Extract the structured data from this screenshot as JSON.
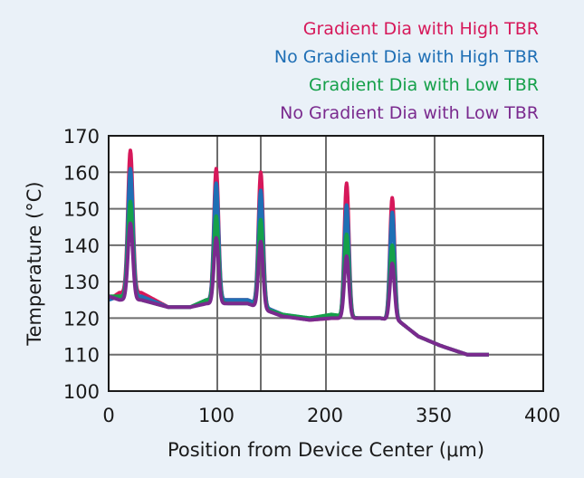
{
  "chart_data": {
    "type": "line",
    "xlabel": "Position from Device Center (μm)",
    "ylabel": "Temperature (°C)",
    "xlim": [
      0,
      400
    ],
    "ylim": [
      100,
      170
    ],
    "xticks": [
      0,
      100,
      200,
      350,
      400
    ],
    "xtick_labels": [
      "0",
      "100",
      "200",
      "350",
      "400"
    ],
    "xgrid": [
      0,
      100,
      140,
      200,
      300,
      400
    ],
    "yticks": [
      100,
      110,
      120,
      130,
      140,
      150,
      160,
      170
    ],
    "grid": true,
    "legend_position": "top-right",
    "peaks": [
      {
        "x": 20,
        "width": 3.2
      },
      {
        "x": 99,
        "width": 3.0
      },
      {
        "x": 140,
        "width": 3.0
      },
      {
        "x": 219,
        "width": 3.0
      },
      {
        "x": 261,
        "width": 3.0
      }
    ],
    "series": [
      {
        "name": "Gradient Dia with High TBR",
        "color": "#d6185a",
        "peaks": [
          166,
          161,
          160,
          157,
          153
        ],
        "baseline": [
          [
            0,
            125
          ],
          [
            10,
            127
          ],
          [
            30,
            127
          ],
          [
            55,
            123
          ],
          [
            75,
            123
          ],
          [
            90,
            125
          ],
          [
            110,
            125
          ],
          [
            128,
            125
          ],
          [
            160,
            121
          ],
          [
            185,
            119.5
          ],
          [
            205,
            120
          ],
          [
            230,
            120
          ],
          [
            250,
            120
          ],
          [
            268,
            119
          ],
          [
            285,
            115
          ],
          [
            305,
            112.5
          ],
          [
            330,
            110
          ],
          [
            350,
            110
          ]
        ]
      },
      {
        "name": "No Gradient Dia with High TBR",
        "color": "#1f6fb5",
        "peaks": [
          161,
          157,
          155,
          151,
          149
        ],
        "baseline": [
          [
            0,
            125
          ],
          [
            10,
            126
          ],
          [
            30,
            126
          ],
          [
            55,
            123
          ],
          [
            75,
            123
          ],
          [
            90,
            125
          ],
          [
            110,
            125
          ],
          [
            128,
            125
          ],
          [
            160,
            121
          ],
          [
            185,
            120
          ],
          [
            205,
            120.5
          ],
          [
            230,
            120
          ],
          [
            250,
            120
          ],
          [
            268,
            119
          ],
          [
            285,
            115
          ],
          [
            305,
            112.5
          ],
          [
            330,
            110
          ],
          [
            350,
            110
          ]
        ]
      },
      {
        "name": "Gradient Dia with Low TBR",
        "color": "#15a04a",
        "peaks": [
          152,
          148,
          147,
          143,
          140
        ],
        "baseline": [
          [
            0,
            126
          ],
          [
            10,
            126
          ],
          [
            30,
            125
          ],
          [
            55,
            123
          ],
          [
            75,
            123
          ],
          [
            90,
            125
          ],
          [
            110,
            124
          ],
          [
            128,
            124
          ],
          [
            160,
            121
          ],
          [
            185,
            120
          ],
          [
            205,
            121
          ],
          [
            230,
            120
          ],
          [
            250,
            120
          ],
          [
            268,
            119
          ],
          [
            285,
            115
          ],
          [
            305,
            112.5
          ],
          [
            330,
            110
          ],
          [
            350,
            110
          ]
        ]
      },
      {
        "name": "No Gradient Dia with Low TBR",
        "color": "#7a2a8e",
        "peaks": [
          146,
          142,
          141,
          137,
          135
        ],
        "baseline": [
          [
            0,
            126
          ],
          [
            10,
            125
          ],
          [
            30,
            125
          ],
          [
            55,
            123
          ],
          [
            75,
            123
          ],
          [
            90,
            124
          ],
          [
            110,
            124
          ],
          [
            128,
            124
          ],
          [
            160,
            120.5
          ],
          [
            185,
            119.5
          ],
          [
            205,
            120
          ],
          [
            230,
            120
          ],
          [
            250,
            120
          ],
          [
            268,
            119
          ],
          [
            285,
            115
          ],
          [
            305,
            112.5
          ],
          [
            330,
            110
          ],
          [
            350,
            110
          ]
        ]
      }
    ]
  }
}
